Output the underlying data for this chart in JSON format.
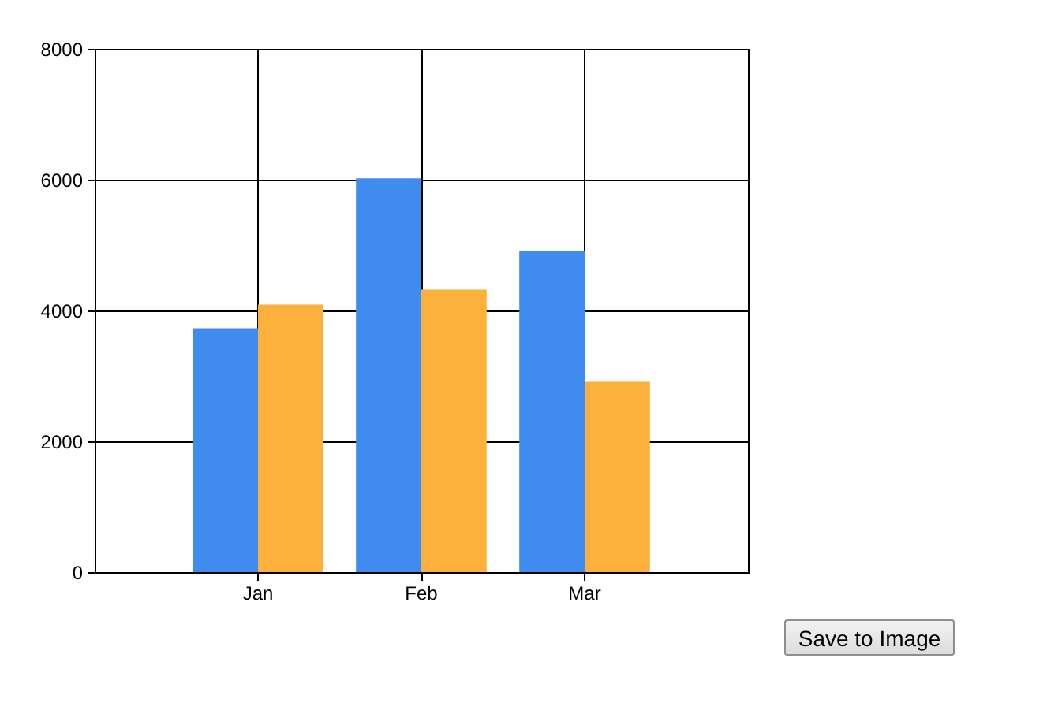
{
  "chart_data": {
    "type": "bar",
    "categories": [
      "Jan",
      "Feb",
      "Mar"
    ],
    "series": [
      {
        "color": "#3f8bf0",
        "values": [
          3730,
          6020,
          4910
        ]
      },
      {
        "color": "#fbb13c",
        "values": [
          4090,
          4320,
          2910
        ]
      }
    ],
    "ylim": [
      0,
      8000
    ],
    "yticks": [
      0,
      2000,
      4000,
      6000,
      8000
    ],
    "grid": true,
    "legend": false,
    "annotations": [
      "Save to Image"
    ]
  }
}
